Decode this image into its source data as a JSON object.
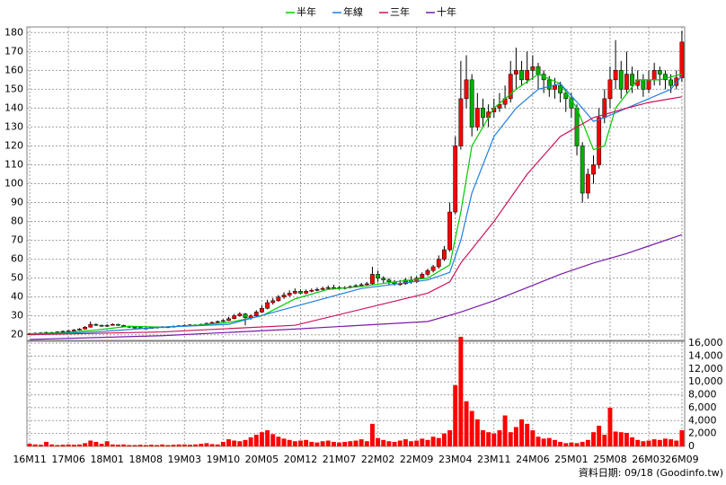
{
  "chart_data": {
    "type": "candlestick",
    "categories": [
      "16M11",
      null,
      null,
      null,
      null,
      null,
      null,
      "17M06",
      null,
      null,
      null,
      null,
      null,
      null,
      "18M01",
      null,
      null,
      null,
      null,
      null,
      null,
      "18M08",
      null,
      null,
      null,
      null,
      null,
      null,
      "19M03",
      null,
      null,
      null,
      null,
      null,
      null,
      "19M10",
      null,
      null,
      null,
      null,
      null,
      null,
      "20M05",
      null,
      null,
      null,
      null,
      null,
      null,
      "20M12",
      null,
      null,
      null,
      null,
      null,
      null,
      "21M07",
      null,
      null,
      null,
      null,
      null,
      null,
      "22M02",
      null,
      null,
      null,
      null,
      null,
      null,
      "22M09",
      null,
      null,
      null,
      null,
      null,
      null,
      "23M04",
      null,
      null,
      null,
      null,
      null,
      null,
      "23M11",
      null,
      null,
      null,
      null,
      null,
      null,
      "24M06",
      null,
      null,
      null,
      null,
      null,
      null,
      "25M01",
      null,
      null,
      null,
      null,
      null,
      null,
      "25M08",
      null,
      null,
      null,
      null,
      null,
      null,
      "26M03",
      null,
      null,
      null,
      null,
      null,
      "26M09"
    ],
    "open": [
      20,
      20.5,
      20.8,
      21,
      21.2,
      21,
      21.5,
      21.8,
      22,
      22.5,
      23,
      24,
      25.5,
      25,
      24.5,
      25,
      25.5,
      25,
      24.5,
      24,
      23.8,
      23.5,
      23.5,
      23.8,
      24,
      24.2,
      24,
      24.5,
      24.8,
      25,
      25.2,
      25,
      25.5,
      26,
      26.5,
      27,
      27.5,
      28.5,
      30,
      31,
      29,
      30,
      32,
      34,
      37,
      38,
      40,
      41,
      42,
      43,
      42,
      43,
      43.5,
      44,
      44.5,
      45,
      45,
      44.5,
      45,
      45.5,
      46,
      46.5,
      47,
      52,
      50,
      49,
      48,
      47,
      47,
      49,
      48,
      50,
      52,
      54,
      56,
      60,
      65,
      85,
      120,
      145,
      155,
      130,
      140,
      135,
      138,
      140,
      142,
      145,
      158,
      160,
      155,
      160,
      162,
      158,
      155,
      150,
      152,
      148,
      145,
      140,
      120,
      95,
      105,
      110,
      135,
      145,
      155,
      160,
      150,
      158,
      152,
      155,
      150,
      155,
      160,
      158,
      155,
      152,
      156
    ],
    "high": [
      21,
      21.2,
      21.4,
      21.6,
      21.5,
      21.9,
      22.2,
      22.5,
      23,
      23.5,
      24.6,
      27,
      26,
      25.4,
      25.6,
      26,
      25.8,
      25.3,
      24.8,
      24.3,
      24.1,
      24,
      24.2,
      24.4,
      24.6,
      24.5,
      24.9,
      25.1,
      25.5,
      25.6,
      25.5,
      25.9,
      26.5,
      27,
      27.5,
      28.2,
      29.5,
      31,
      32,
      31.5,
      30.8,
      33,
      35.5,
      38.5,
      39.5,
      41,
      42.5,
      43.5,
      44.5,
      44,
      44,
      44.5,
      45,
      45.5,
      46,
      46.5,
      45.8,
      45.7,
      46.2,
      46.8,
      47.5,
      48,
      56,
      54,
      51,
      50,
      49,
      49,
      50,
      51,
      51,
      53,
      55,
      57,
      62,
      67,
      90,
      125,
      165,
      168,
      158,
      148,
      145,
      142,
      145,
      148,
      152,
      165,
      172,
      165,
      170,
      168,
      164,
      160,
      157,
      156,
      154,
      150,
      148,
      142,
      122,
      108,
      115,
      140,
      150,
      162,
      176,
      165,
      170,
      162,
      160,
      158,
      160,
      164,
      162,
      160,
      158,
      160,
      181
    ],
    "low": [
      19.8,
      20.2,
      20.5,
      20.7,
      20.6,
      20.8,
      21.2,
      21.5,
      21.8,
      22.2,
      22.8,
      23.8,
      24.6,
      24.2,
      24.2,
      24.8,
      24.7,
      24.2,
      23.6,
      23.4,
      23.2,
      23.1,
      23.2,
      23.5,
      23.7,
      23.6,
      23.8,
      24.2,
      24.5,
      24.8,
      24.7,
      24.8,
      25.2,
      25.7,
      26.2,
      26.8,
      27.2,
      28.2,
      29.5,
      25,
      28,
      29.5,
      31.5,
      33.5,
      36,
      37.5,
      39,
      40,
      41.5,
      41.5,
      41.5,
      42.5,
      43,
      43.5,
      44,
      44.5,
      44,
      44,
      44.5,
      45,
      45.5,
      46,
      46.5,
      48,
      47.5,
      46.5,
      46,
      46,
      46.5,
      47,
      47.5,
      49.5,
      51,
      53,
      55,
      59,
      64,
      84,
      118,
      140,
      125,
      128,
      130,
      130,
      135,
      138,
      140,
      143,
      150,
      152,
      153,
      155,
      150,
      148,
      146,
      145,
      143,
      138,
      135,
      115,
      90,
      92,
      100,
      108,
      132,
      140,
      150,
      145,
      148,
      148,
      150,
      146,
      148,
      152,
      152,
      150,
      148,
      150,
      154
    ],
    "close": [
      20.5,
      20.8,
      21,
      21.2,
      21,
      21.5,
      21.8,
      22,
      22.5,
      23,
      24,
      25.5,
      25,
      24.5,
      25,
      25.5,
      25,
      24.5,
      24,
      23.8,
      23.5,
      23.5,
      23.8,
      24,
      24.2,
      24,
      24.5,
      24.8,
      25,
      25.2,
      25,
      25.5,
      26,
      26.5,
      27,
      27.5,
      28.5,
      30,
      31,
      29,
      30,
      32,
      34,
      37,
      38,
      40,
      41,
      42,
      43,
      42,
      43,
      43.5,
      44,
      44.5,
      45,
      45,
      44.5,
      45,
      45.5,
      46,
      46.5,
      47,
      52,
      50,
      49,
      48,
      47,
      47,
      49,
      48,
      50,
      52,
      54,
      56,
      60,
      65,
      85,
      120,
      145,
      155,
      130,
      140,
      135,
      138,
      140,
      142,
      145,
      158,
      160,
      155,
      160,
      162,
      158,
      155,
      150,
      152,
      148,
      145,
      140,
      120,
      95,
      105,
      110,
      135,
      145,
      155,
      160,
      150,
      158,
      152,
      155,
      150,
      155,
      160,
      158,
      155,
      152,
      156,
      175
    ],
    "volume": [
      400,
      300,
      250,
      700,
      300,
      200,
      250,
      300,
      250,
      300,
      500,
      900,
      700,
      400,
      800,
      300,
      250,
      300,
      200,
      200,
      250,
      200,
      250,
      200,
      300,
      200,
      250,
      300,
      300,
      250,
      300,
      400,
      500,
      350,
      300,
      700,
      1100,
      900,
      800,
      1000,
      1400,
      1800,
      2200,
      2500,
      1900,
      1500,
      1200,
      1000,
      800,
      900,
      1000,
      700,
      600,
      800,
      900,
      700,
      600,
      700,
      800,
      900,
      1100,
      800,
      3500,
      1300,
      1000,
      800,
      700,
      900,
      1100,
      800,
      900,
      1200,
      1000,
      1500,
      1300,
      2000,
      2500,
      9500,
      17000,
      7000,
      5500,
      4200,
      2500,
      2200,
      2000,
      2500,
      4800,
      2200,
      3000,
      4200,
      3500,
      2500,
      1500,
      1200,
      1300,
      1000,
      700,
      500,
      600,
      500,
      700,
      1000,
      2200,
      3200,
      1800,
      6000,
      2300,
      2200,
      2100,
      1400,
      1000,
      800,
      900,
      1100,
      1000,
      1200,
      1100,
      900,
      2500
    ],
    "up_color": "#ff0000",
    "down_color": "#00b000",
    "ylim": [
      17,
      183
    ],
    "yticks": [
      20,
      30,
      40,
      50,
      60,
      70,
      80,
      90,
      100,
      110,
      120,
      130,
      140,
      150,
      160,
      170,
      180
    ],
    "volume_ylim": [
      0,
      16300
    ],
    "volume_ticks": [
      0,
      {
        "value": 2000,
        "label": "2,000"
      },
      {
        "value": 4000,
        "label": "4,000"
      },
      {
        "value": 6000,
        "label": "6,000"
      },
      {
        "value": 8000,
        "label": "8,000"
      },
      {
        "value": 10000,
        "label": "10,000"
      },
      {
        "value": 12000,
        "label": "12,000"
      },
      {
        "value": 14000,
        "label": "14,000"
      },
      {
        "value": 16000,
        "label": "16,000"
      }
    ],
    "volume_color": "#ff0000",
    "grid": true,
    "series": [
      {
        "name": "半年",
        "color": "#00cc00",
        "x": [
          0,
          6,
          12,
          18,
          24,
          30,
          36,
          42,
          48,
          54,
          60,
          66,
          72,
          76,
          78,
          80,
          84,
          88,
          92,
          96,
          99,
          102,
          104,
          106,
          110,
          114,
          118
        ],
        "values": [
          20.5,
          21,
          22.5,
          24.5,
          24,
          25,
          26.5,
          30,
          39,
          44,
          45.5,
          48,
          50,
          57,
          85,
          120,
          140,
          150,
          158,
          153,
          140,
          118,
          120,
          140,
          155,
          155,
          158
        ]
      },
      {
        "name": "年線",
        "color": "#1e7fe0",
        "x": [
          0,
          12,
          24,
          36,
          48,
          60,
          72,
          76,
          78,
          80,
          84,
          88,
          92,
          96,
          100,
          102,
          104,
          108,
          112,
          116,
          118
        ],
        "values": [
          20,
          21.5,
          24,
          25.5,
          35,
          44.5,
          49,
          53,
          70,
          95,
          125,
          140,
          150,
          153,
          140,
          133,
          135,
          140,
          145,
          150,
          157
        ]
      },
      {
        "name": "三年",
        "color": "#d0105a",
        "x": [
          0,
          24,
          48,
          72,
          76,
          78,
          84,
          90,
          96,
          102,
          108,
          112,
          116,
          118
        ],
        "values": [
          20,
          21.5,
          25,
          42,
          48,
          58,
          80,
          105,
          125,
          135,
          140,
          143,
          145,
          146
        ]
      },
      {
        "name": "十年",
        "color": "#7a1aa8",
        "x": [
          0,
          24,
          48,
          72,
          78,
          84,
          90,
          96,
          102,
          108,
          112,
          118
        ],
        "values": [
          17.5,
          19.5,
          23,
          27,
          32,
          38,
          45,
          52,
          58,
          63,
          67,
          73
        ]
      }
    ],
    "source_note": "資料日期: 09/18 (Goodinfo.tw)"
  }
}
